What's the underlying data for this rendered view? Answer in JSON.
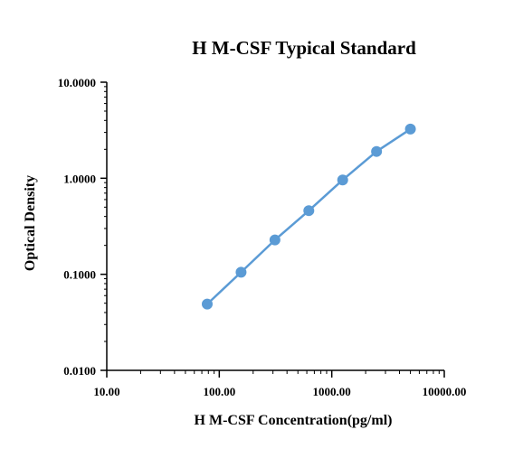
{
  "chart_data": {
    "type": "line",
    "title": "H M-CSF Typical Standard",
    "xlabel": "H M-CSF Concentration(pg/ml)",
    "ylabel": "Optical Density",
    "x_scale": "log",
    "y_scale": "log",
    "xlim": [
      10,
      10000
    ],
    "ylim": [
      0.01,
      10
    ],
    "x_ticks": [
      {
        "value": 10,
        "label": "10.00"
      },
      {
        "value": 100,
        "label": "100.00"
      },
      {
        "value": 1000,
        "label": "1000.00"
      },
      {
        "value": 10000,
        "label": "10000.00"
      }
    ],
    "y_ticks": [
      {
        "value": 0.01,
        "label": "0.0100"
      },
      {
        "value": 0.1,
        "label": "0.1000"
      },
      {
        "value": 1,
        "label": "1.0000"
      },
      {
        "value": 10,
        "label": "10.0000"
      }
    ],
    "grid": false,
    "series": [
      {
        "color": "#5b9bd5",
        "x": [
          78.125,
          156.25,
          312.5,
          625,
          1250,
          2500,
          5000
        ],
        "y": [
          0.049,
          0.105,
          0.228,
          0.46,
          0.96,
          1.9,
          3.25
        ]
      }
    ]
  }
}
